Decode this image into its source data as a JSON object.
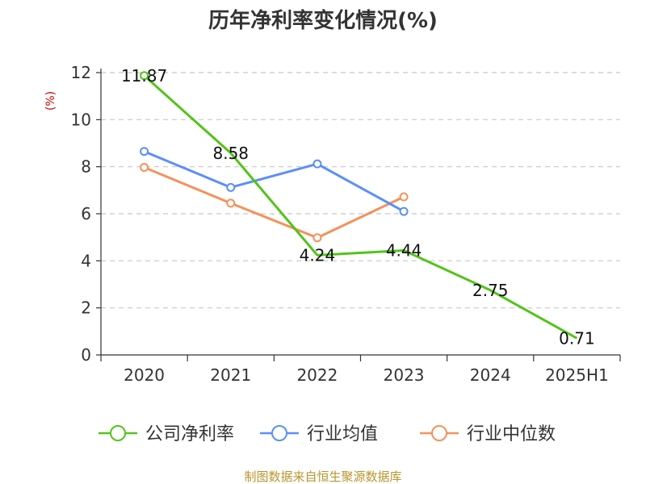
{
  "chart_data": {
    "type": "line",
    "title": "历年净利率变化情况(%)",
    "ylabel": "(%)",
    "xlabel": "",
    "categories": [
      "2020",
      "2021",
      "2022",
      "2023",
      "2024",
      "2025H1"
    ],
    "ylim": [
      0,
      12
    ],
    "yticks": [
      0,
      2,
      4,
      6,
      8,
      10,
      12
    ],
    "grid": true,
    "legend_position": "bottom",
    "series": [
      {
        "name": "公司净利率",
        "color": "#52c41a",
        "values": [
          11.87,
          8.58,
          4.24,
          4.44,
          2.75,
          0.71
        ],
        "labels": [
          "11.87",
          "8.58",
          "4.24",
          "4.44",
          "2.75",
          "0.71"
        ],
        "show_markers": [
          true,
          false,
          false,
          false,
          false,
          false
        ]
      },
      {
        "name": "行业均值",
        "color": "#5b8ff9",
        "values": [
          8.65,
          7.12,
          8.12,
          6.1,
          null,
          null
        ],
        "show_markers": [
          true,
          true,
          true,
          true,
          false,
          false
        ]
      },
      {
        "name": "行业中位数",
        "color": "#f6915a",
        "values": [
          7.97,
          6.45,
          4.98,
          6.72,
          null,
          null
        ],
        "show_markers": [
          true,
          true,
          true,
          true,
          false,
          false
        ]
      }
    ]
  },
  "footer": {
    "source": "制图数据来自恒生聚源数据库"
  }
}
